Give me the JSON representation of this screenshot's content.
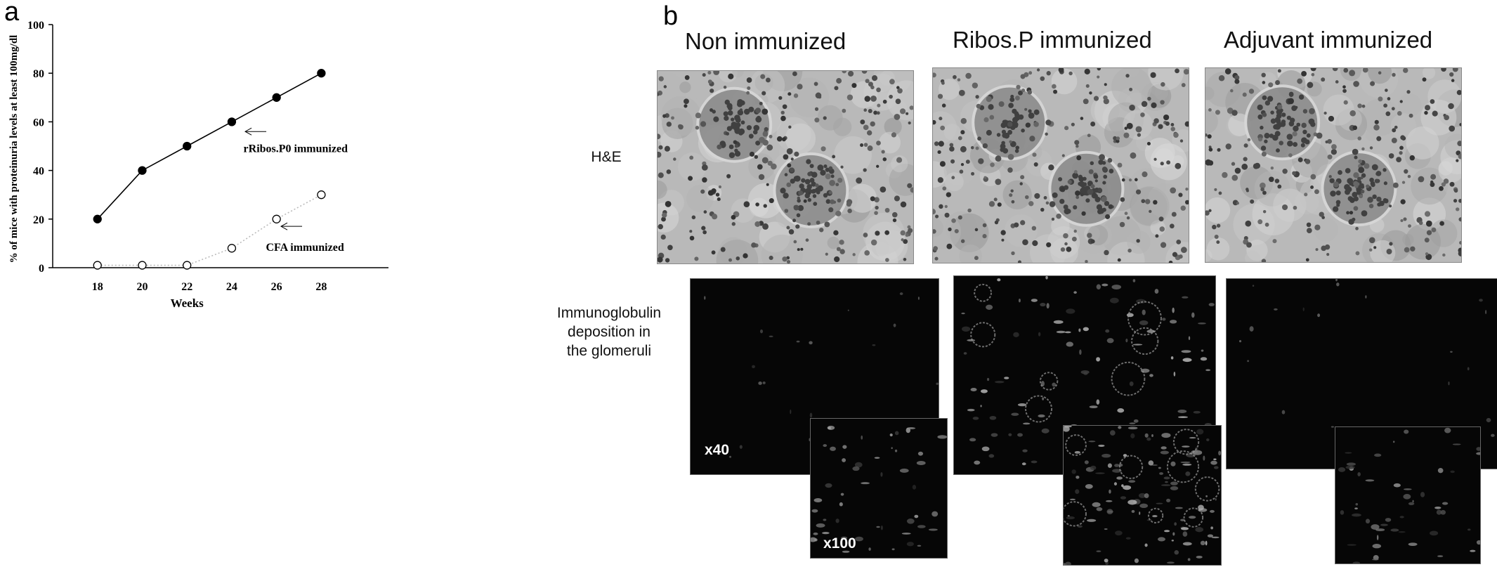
{
  "panel_a": {
    "letter": "a",
    "chart_data": {
      "type": "line",
      "title": "",
      "xlabel": "Weeks",
      "ylabel": "% of mice with proteinuria levels at least 100mg/dl",
      "x": [
        18,
        20,
        22,
        24,
        26,
        28
      ],
      "xticks": [
        "18",
        "20",
        "22",
        "24",
        "26",
        "28"
      ],
      "xlim": [
        16,
        31
      ],
      "ylim": [
        0,
        100
      ],
      "yticks": [
        "0",
        "20",
        "40",
        "60",
        "80",
        "100"
      ],
      "grid": false,
      "series": [
        {
          "name": "rRibos.P0  immunized",
          "values": [
            20,
            40,
            50,
            60,
            70,
            80
          ],
          "marker": "filled-circle",
          "line": "solid",
          "color": "#000000"
        },
        {
          "name": "CFA immunized",
          "values": [
            1,
            1,
            1,
            8,
            20,
            30
          ],
          "marker": "open-circle",
          "line": "dotted",
          "color": "#aaaaaa"
        }
      ],
      "annotations": [
        {
          "text": "rRibos.P0  immunized",
          "arrow": "left",
          "points_to_series": 0
        },
        {
          "text": "CFA immunized",
          "arrow": "left",
          "points_to_series": 1
        }
      ]
    }
  },
  "panel_b": {
    "letter": "b",
    "columns": [
      "Non immunized",
      "Ribos.P immunized",
      "Adjuvant immunized"
    ],
    "rows": {
      "he": "H&E",
      "ig_line1": "Immunoglobulin",
      "ig_line2": "deposition in",
      "ig_line3": "the glomeruli"
    },
    "magnifications": {
      "low": "x40",
      "high": "x100"
    },
    "colors": {
      "he_bg": "#b9b9b9",
      "fluor_bg": "#060606"
    }
  }
}
